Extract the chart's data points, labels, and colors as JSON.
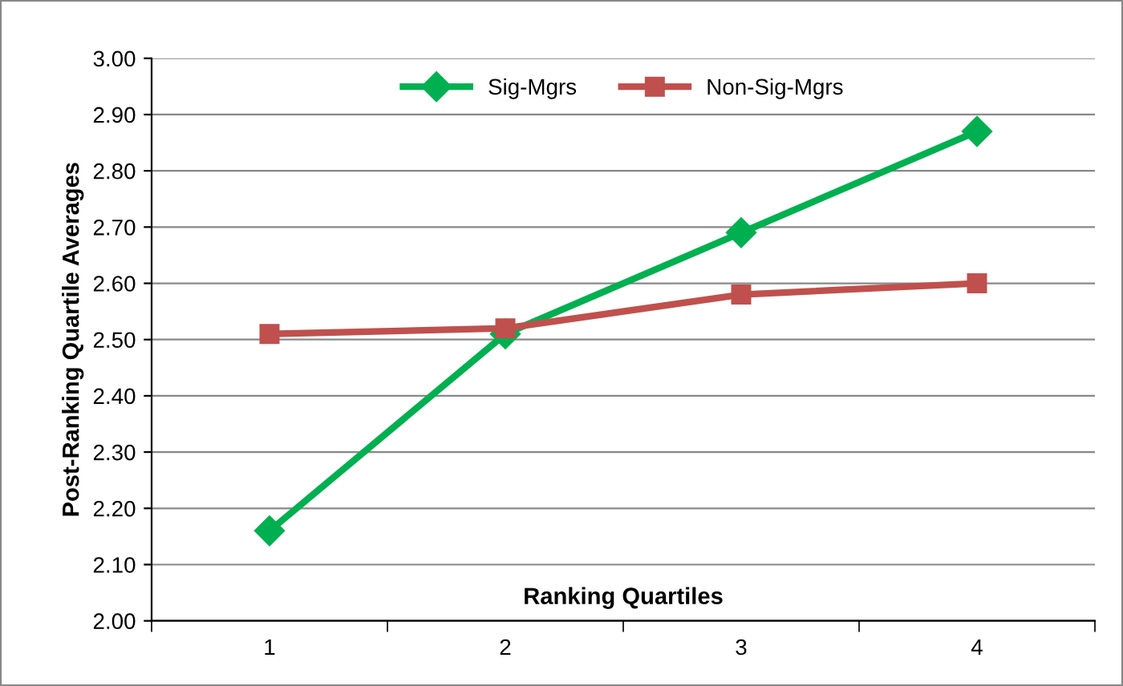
{
  "chart_data": {
    "type": "line",
    "xlabel": "Ranking Quartiles",
    "ylabel": "Post-Ranking Quartile Averages",
    "categories": [
      "1",
      "2",
      "3",
      "4"
    ],
    "series": [
      {
        "name": "Sig-Mgrs",
        "color": "#00b050",
        "marker": "diamond",
        "values": [
          2.16,
          2.51,
          2.69,
          2.87
        ]
      },
      {
        "name": "Non-Sig-Mgrs",
        "color": "#c0504d",
        "marker": "square",
        "values": [
          2.51,
          2.52,
          2.58,
          2.6
        ]
      }
    ],
    "ylim": [
      2.0,
      3.0
    ],
    "yticks": [
      {
        "value": 2.0,
        "label": "2.00"
      },
      {
        "value": 2.1,
        "label": "2.10"
      },
      {
        "value": 2.2,
        "label": "2.20"
      },
      {
        "value": 2.3,
        "label": "2.30"
      },
      {
        "value": 2.4,
        "label": "2.40"
      },
      {
        "value": 2.5,
        "label": "2.50"
      },
      {
        "value": 2.6,
        "label": "2.60"
      },
      {
        "value": 2.7,
        "label": "2.70"
      },
      {
        "value": 2.8,
        "label": "2.80"
      },
      {
        "value": 2.9,
        "label": "2.90"
      },
      {
        "value": 3.0,
        "label": "3.00"
      }
    ],
    "grid": "y",
    "legend": "top",
    "line_style": "solid"
  }
}
